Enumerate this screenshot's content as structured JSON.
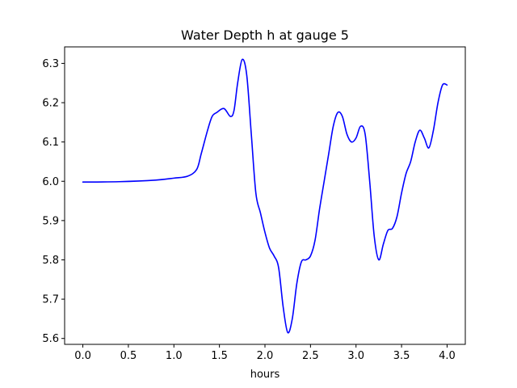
{
  "chart_data": {
    "type": "line",
    "title": "Water Depth h at gauge 5",
    "xlabel": "hours",
    "ylabel": "",
    "xlim": [
      -0.2,
      4.2
    ],
    "ylim": [
      5.585,
      6.342
    ],
    "xticks": [
      0.0,
      0.5,
      1.0,
      1.5,
      2.0,
      2.5,
      3.0,
      3.5,
      4.0
    ],
    "xtick_labels": [
      "0.0",
      "0.5",
      "1.0",
      "1.5",
      "2.0",
      "2.5",
      "3.0",
      "3.5",
      "4.0"
    ],
    "yticks": [
      5.6,
      5.7,
      5.8,
      5.9,
      6.0,
      6.1,
      6.2,
      6.3
    ],
    "ytick_labels": [
      "5.6",
      "5.7",
      "5.8",
      "5.9",
      "6.0",
      "6.1",
      "6.2",
      "6.3"
    ],
    "grid": false,
    "series": [
      {
        "name": "",
        "color": "#0000ff",
        "x": [
          0.0,
          0.4,
          0.8,
          1.0,
          1.15,
          1.25,
          1.3,
          1.37,
          1.42,
          1.47,
          1.55,
          1.62,
          1.66,
          1.7,
          1.75,
          1.8,
          1.85,
          1.9,
          1.95,
          2.0,
          2.05,
          2.1,
          2.15,
          2.2,
          2.25,
          2.3,
          2.35,
          2.4,
          2.45,
          2.5,
          2.55,
          2.6,
          2.65,
          2.7,
          2.75,
          2.8,
          2.85,
          2.9,
          2.95,
          3.0,
          3.05,
          3.1,
          3.15,
          3.2,
          3.25,
          3.3,
          3.35,
          3.4,
          3.45,
          3.5,
          3.55,
          3.6,
          3.65,
          3.7,
          3.75,
          3.8,
          3.85,
          3.9,
          3.95,
          4.0
        ],
        "y": [
          5.998,
          5.999,
          6.003,
          6.008,
          6.013,
          6.03,
          6.07,
          6.13,
          6.165,
          6.175,
          6.185,
          6.165,
          6.18,
          6.25,
          6.31,
          6.27,
          6.12,
          5.97,
          5.92,
          5.87,
          5.83,
          5.81,
          5.78,
          5.68,
          5.615,
          5.65,
          5.74,
          5.795,
          5.8,
          5.81,
          5.85,
          5.93,
          6.0,
          6.07,
          6.14,
          6.175,
          6.165,
          6.12,
          6.1,
          6.11,
          6.14,
          6.12,
          6.0,
          5.86,
          5.8,
          5.84,
          5.875,
          5.88,
          5.91,
          5.97,
          6.02,
          6.05,
          6.1,
          6.13,
          6.11,
          6.085,
          6.13,
          6.2,
          6.245,
          6.245
        ]
      }
    ]
  }
}
